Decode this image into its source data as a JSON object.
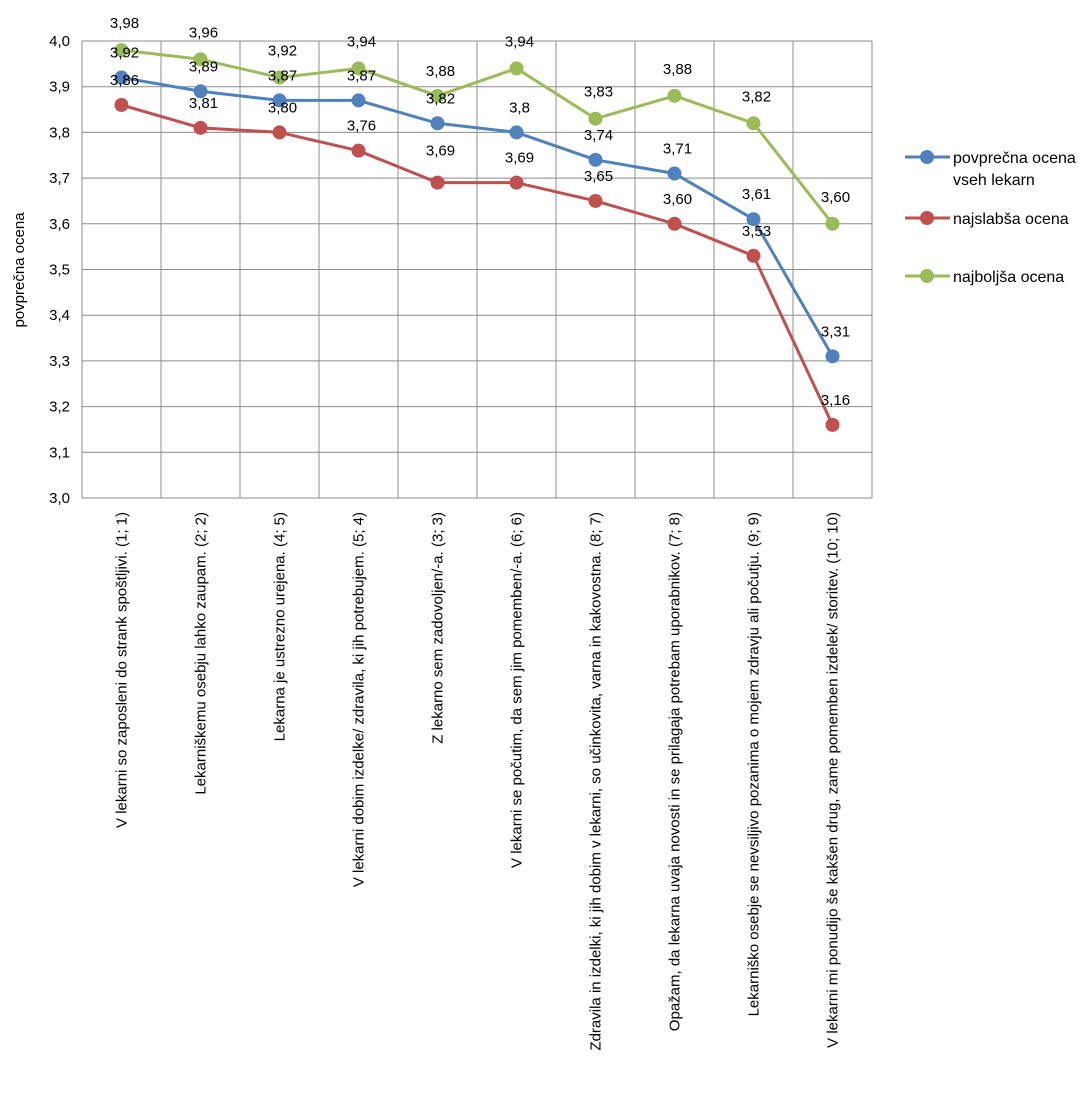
{
  "chart_data": {
    "type": "line",
    "title": "",
    "xlabel": "",
    "ylabel": "povprečna ocena",
    "ylim": [
      3.0,
      4.0
    ],
    "yticks": [
      "3,0",
      "3,1",
      "3,2",
      "3,3",
      "3,4",
      "3,5",
      "3,6",
      "3,7",
      "3,8",
      "3,9",
      "4,0"
    ],
    "grid": true,
    "legend_position": "right",
    "categories": [
      "V lekarni so zaposleni do strank spoštljivi. (1; 1)",
      "Lekarniškemu osebju lahko zaupam. (2; 2)",
      "Lekarna je ustrezno urejena. (4; 5)",
      "V lekarni dobim izdelke/ zdravila, ki jih potrebujem. (5; 4)",
      "Z lekarno sem zadovoljen/-a. (3; 3)",
      "V lekarni se počutim, da sem jim pomemben/-a. (6; 6)",
      "Zdravila in izdelki, ki jih dobim v lekarni, so učinkovita, varna in kakovostna. (8; 7)",
      "Opažam, da lekarna uvaja novosti in se prilagaja potrebam uporabnikov. (7; 8)",
      "Lekarniško osebje se nevsiljivo pozanima o mojem zdravju ali počutju. (9; 9)",
      "V lekarni mi ponudijo še kakšen drug, zame pomemben izdelek/ storitev. (10; 10)"
    ],
    "series": [
      {
        "name": "najslabša ocena",
        "color": "#C0504D",
        "values": [
          3.86,
          3.81,
          3.8,
          3.76,
          3.69,
          3.69,
          3.65,
          3.6,
          3.53,
          3.16
        ],
        "labels": [
          "3,86",
          "3,81",
          "3,80",
          "3,76",
          "3,69",
          "3,69",
          "3,65",
          "3,60",
          "3,53",
          "3,16"
        ]
      },
      {
        "name": "povprečna ocena vseh lekarn",
        "color": "#4F81BD",
        "values": [
          3.92,
          3.89,
          3.87,
          3.87,
          3.82,
          3.8,
          3.74,
          3.71,
          3.61,
          3.31
        ],
        "labels": [
          "3,92",
          "3,89",
          "3,87",
          "3,87",
          "3,82",
          "3,8",
          "3,74",
          "3,71",
          "3,61",
          "3,31"
        ]
      },
      {
        "name": "najboljša ocena",
        "color": "#9BBB59",
        "values": [
          3.98,
          3.96,
          3.92,
          3.94,
          3.88,
          3.94,
          3.83,
          3.88,
          3.82,
          3.6
        ],
        "labels": [
          "3,98",
          "3,96",
          "3,92",
          "3,94",
          "3,88",
          "3,94",
          "3,83",
          "3,88",
          "3,82",
          "3,60"
        ]
      }
    ],
    "legend": [
      {
        "lines": [
          "povprečna ocena",
          "vseh lekarn"
        ],
        "color": "#4F81BD"
      },
      {
        "lines": [
          "najslabša ocena"
        ],
        "color": "#C0504D"
      },
      {
        "lines": [
          "najboljša ocena"
        ],
        "color": "#9BBB59"
      }
    ]
  }
}
